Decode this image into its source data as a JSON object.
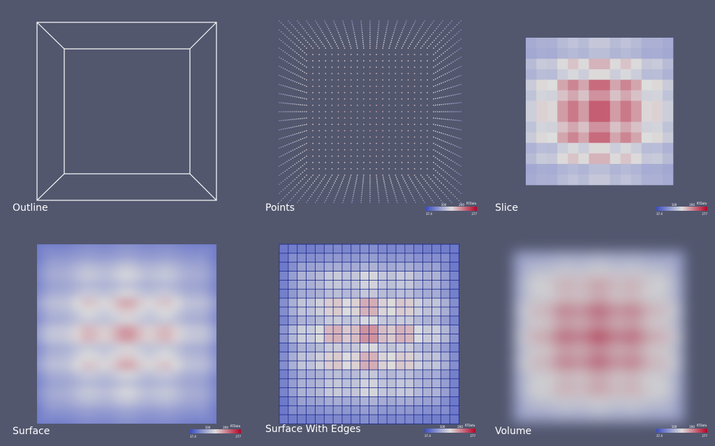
{
  "panels": [
    {
      "label": "Outline"
    },
    {
      "label": "Points"
    },
    {
      "label": "Slice"
    },
    {
      "label": "Surface"
    },
    {
      "label": "Surface With Edges"
    },
    {
      "label": "Volume"
    }
  ],
  "legend": {
    "title": "RTData",
    "min": "37.4",
    "max": "277",
    "ticks": [
      "100",
      "200"
    ]
  }
}
